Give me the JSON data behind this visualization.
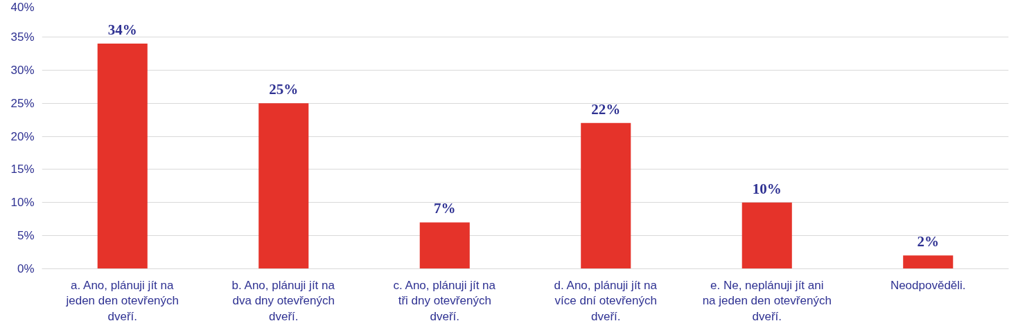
{
  "chart_data": {
    "type": "bar",
    "categories": [
      "a. Ano, plánuji jít na jeden den otevřených dveří.",
      "b. Ano, plánuji jít na dva dny otevřených dveří.",
      "c. Ano, plánuji jít na tři dny otevřených dveří.",
      "d. Ano, plánuji jít na více dní otevřených dveří.",
      "e. Ne, neplánuji jít ani na jeden den otevřených dveří.",
      "Neodpověděli."
    ],
    "values": [
      34,
      25,
      7,
      22,
      10,
      2
    ],
    "value_labels": [
      "34%",
      "25%",
      "7%",
      "22%",
      "10%",
      "2%"
    ],
    "color": "#e5332a",
    "ylim": [
      0,
      40
    ],
    "yticks": [
      {
        "value": 0,
        "label": "0%"
      },
      {
        "value": 5,
        "label": "5%"
      },
      {
        "value": 10,
        "label": "10%"
      },
      {
        "value": 15,
        "label": "15%"
      },
      {
        "value": 20,
        "label": "20%"
      },
      {
        "value": 25,
        "label": "25%"
      },
      {
        "value": 30,
        "label": "30%"
      },
      {
        "value": 35,
        "label": "35%"
      },
      {
        "value": 40,
        "label": "40%"
      }
    ],
    "grid": "y"
  }
}
